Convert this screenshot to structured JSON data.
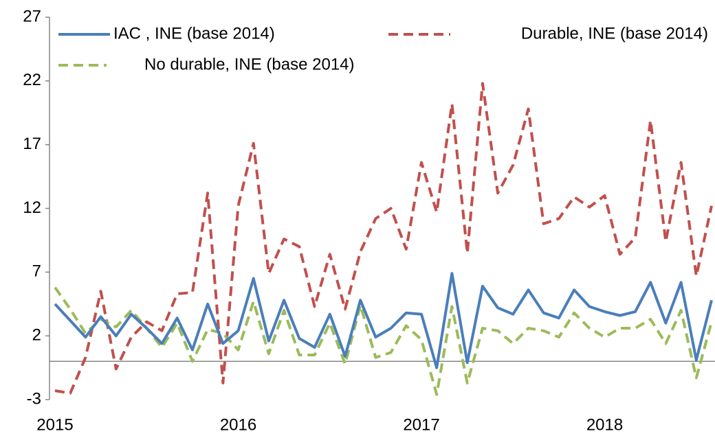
{
  "chart_data": {
    "type": "line",
    "categories": [
      "2015",
      null,
      null,
      null,
      null,
      null,
      null,
      null,
      null,
      null,
      null,
      null,
      "2016",
      null,
      null,
      null,
      null,
      null,
      null,
      null,
      null,
      null,
      null,
      null,
      "2017",
      null,
      null,
      null,
      null,
      null,
      null,
      null,
      null,
      null,
      null,
      null,
      "2018",
      null,
      null,
      null,
      null,
      null,
      null,
      null
    ],
    "ylim": [
      -3,
      27
    ],
    "yticks": [
      -3,
      2,
      7,
      12,
      17,
      22,
      27
    ],
    "series": [
      {
        "name": "IAC , INE (base 2014)",
        "color": "#4a7ebb",
        "dash": "solid",
        "values": [
          4.5,
          3.2,
          1.9,
          3.5,
          2.0,
          3.7,
          2.6,
          1.4,
          3.4,
          0.9,
          4.5,
          1.4,
          2.4,
          6.5,
          1.6,
          4.8,
          1.8,
          1.1,
          3.7,
          0.4,
          4.8,
          1.9,
          2.6,
          3.8,
          3.7,
          -0.5,
          6.9,
          -0.1,
          5.9,
          4.2,
          3.7,
          5.6,
          3.8,
          3.4,
          5.6,
          4.3,
          3.9,
          3.6,
          3.9,
          6.2,
          3.0,
          6.2,
          0.1,
          4.8
        ]
      },
      {
        "name": "Durable, INE (base 2014)",
        "color": "#c0504d",
        "dash": "dashed",
        "values": [
          -2.3,
          -2.5,
          0.3,
          5.5,
          -0.6,
          1.9,
          3.1,
          2.4,
          5.3,
          5.4,
          13.2,
          -1.7,
          12.2,
          17.1,
          6.9,
          9.6,
          9.0,
          4.3,
          8.4,
          4.1,
          8.6,
          11.2,
          12.0,
          8.8,
          15.6,
          11.7,
          20.2,
          8.5,
          21.8,
          13.2,
          15.4,
          19.8,
          10.8,
          11.2,
          12.9,
          12.1,
          13.0,
          8.4,
          9.7,
          18.9,
          9.4,
          15.6,
          6.7,
          12.2
        ]
      },
      {
        "name": "No durable, INE (base 2014)",
        "color": "#9bbb59",
        "dash": "dashed",
        "values": [
          5.8,
          4.1,
          2.2,
          3.3,
          2.7,
          4.0,
          2.6,
          1.1,
          3.0,
          0.0,
          2.5,
          2.2,
          0.9,
          4.7,
          0.6,
          4.0,
          0.5,
          0.5,
          3.0,
          -0.2,
          4.4,
          0.3,
          0.7,
          2.8,
          1.7,
          -2.6,
          4.3,
          -1.7,
          2.6,
          2.4,
          1.4,
          2.6,
          2.4,
          1.9,
          3.8,
          2.6,
          1.9,
          2.6,
          2.6,
          3.3,
          1.4,
          4.0,
          -1.3,
          3.1
        ]
      }
    ]
  }
}
